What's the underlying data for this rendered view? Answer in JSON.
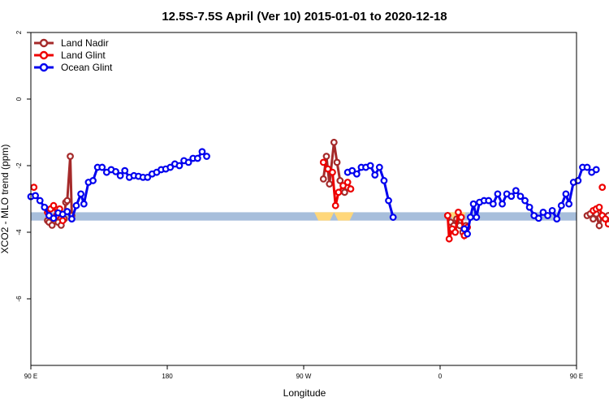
{
  "chart_data": {
    "type": "line",
    "title": "12.5S-7.5S April (Ver 10)   2015-01-01 to 2020-12-18",
    "xlabel": "Longitude",
    "ylabel": "XCO2 - MLO trend (ppm)",
    "xlim": [
      90,
      450
    ],
    "ylim": [
      -8,
      2
    ],
    "x_ticks": [
      {
        "value": 90,
        "label": "90 E"
      },
      {
        "value": 180,
        "label": "180"
      },
      {
        "value": 270,
        "label": "90 W"
      },
      {
        "value": 360,
        "label": "0"
      },
      {
        "value": 450,
        "label": "90 E"
      },
      {
        "value": 540,
        "label": "180"
      }
    ],
    "y_ticks": [
      {
        "value": 2,
        "label": "2"
      },
      {
        "value": 0,
        "label": "0"
      },
      {
        "value": -2,
        "label": "-2"
      },
      {
        "value": -4,
        "label": "-4"
      },
      {
        "value": -6,
        "label": "-6"
      }
    ],
    "grid": false,
    "legend_position": "top-left",
    "land_mask": {
      "y_range": [
        -3.65,
        -3.4
      ],
      "ocean_color": "#a7bedb",
      "land_color": "#ffd77a",
      "land_segments": [
        [
          277,
          290
        ],
        [
          290,
          303
        ],
        [
          366,
          377
        ]
      ]
    },
    "series": [
      {
        "name": "Land Nadir",
        "color": "#a52a2a",
        "segments": [
          [
            [
              101,
              -3.65
            ],
            [
              102,
              -3.7
            ],
            [
              104,
              -3.79
            ],
            [
              105,
              -3.6
            ],
            [
              106,
              -3.65
            ],
            [
              108,
              -3.7
            ],
            [
              110,
              -3.79
            ],
            [
              112,
              -3.6
            ],
            [
              113,
              -3.1
            ],
            [
              114,
              -3.05
            ],
            [
              116,
              -1.72
            ],
            [
              117,
              -3.5
            ]
          ],
          [
            [
              283,
              -2.4
            ],
            [
              285,
              -1.72
            ],
            [
              287,
              -2.55
            ],
            [
              290,
              -1.3
            ],
            [
              292,
              -1.9
            ],
            [
              294,
              -2.45
            ],
            [
              297,
              -2.8
            ],
            [
              299,
              -2.65
            ],
            [
              301,
              -2.7
            ]
          ],
          [
            [
              365,
              -3.5
            ],
            [
              367,
              -3.7
            ],
            [
              369,
              -3.8
            ],
            [
              371,
              -3.6
            ],
            [
              373,
              -3.8
            ],
            [
              375,
              -4.0
            ],
            [
              377,
              -3.8
            ]
          ],
          [
            [
              457,
              -3.5
            ],
            [
              459,
              -3.45
            ],
            [
              461,
              -3.6
            ],
            [
              463,
              -3.45
            ],
            [
              465,
              -3.8
            ],
            [
              467,
              -3.5
            ],
            [
              469,
              -3.55
            ],
            [
              471,
              -3.5
            ],
            [
              473,
              -3.75
            ],
            [
              475,
              -3.45
            ],
            [
              477,
              -3.1
            ],
            [
              478,
              -3.05
            ],
            [
              480,
              -1.72
            ],
            [
              481,
              -3.5
            ]
          ]
        ]
      },
      {
        "name": "Land Glint",
        "color": "#ee0000",
        "segments": [
          [
            [
              101,
              -3.4
            ],
            [
              103,
              -3.3
            ],
            [
              105,
              -3.2
            ],
            [
              107,
              -3.5
            ],
            [
              109,
              -3.3
            ],
            [
              111,
              -3.65
            ]
          ],
          [
            [
              283,
              -1.9
            ],
            [
              286,
              -2.1
            ],
            [
              289,
              -2.2
            ],
            [
              291,
              -3.2
            ],
            [
              293,
              -2.8
            ],
            [
              296,
              -2.6
            ],
            [
              299,
              -2.5
            ],
            [
              301,
              -2.7
            ]
          ],
          [
            [
              365,
              -3.5
            ],
            [
              366,
              -4.2
            ],
            [
              368,
              -3.9
            ],
            [
              370,
              -4.0
            ],
            [
              372,
              -3.4
            ],
            [
              374,
              -3.55
            ],
            [
              376,
              -4.1
            ],
            [
              378,
              -3.85
            ]
          ],
          [
            [
              461,
              -3.35
            ],
            [
              463,
              -3.3
            ],
            [
              465,
              -3.25
            ],
            [
              467,
              -3.5
            ],
            [
              469,
              -3.6
            ],
            [
              471,
              -3.75
            ]
          ]
        ],
        "points": [
          [
            92,
            -2.65
          ],
          [
            467,
            -2.65
          ]
        ]
      },
      {
        "name": "Ocean Glint",
        "color": "#0000ee",
        "segments": [
          [
            [
              90,
              -2.93
            ],
            [
              93,
              -2.9
            ],
            [
              96,
              -3.05
            ],
            [
              99,
              -3.25
            ],
            [
              102,
              -3.5
            ],
            [
              105,
              -3.58
            ],
            [
              108,
              -3.42
            ],
            [
              111,
              -3.46
            ],
            [
              114,
              -3.38
            ],
            [
              117,
              -3.6
            ],
            [
              120,
              -3.2
            ],
            [
              123,
              -2.85
            ],
            [
              125,
              -3.15
            ],
            [
              128,
              -2.5
            ],
            [
              131,
              -2.45
            ],
            [
              134,
              -2.05
            ],
            [
              137,
              -2.05
            ],
            [
              140,
              -2.2
            ],
            [
              143,
              -2.12
            ],
            [
              146,
              -2.18
            ],
            [
              149,
              -2.3
            ],
            [
              152,
              -2.15
            ],
            [
              155,
              -2.35
            ],
            [
              158,
              -2.3
            ],
            [
              161,
              -2.32
            ],
            [
              164,
              -2.35
            ],
            [
              167,
              -2.35
            ],
            [
              170,
              -2.25
            ],
            [
              173,
              -2.2
            ],
            [
              176,
              -2.12
            ],
            [
              179,
              -2.1
            ],
            [
              182,
              -2.05
            ],
            [
              185,
              -1.95
            ],
            [
              188,
              -2.0
            ],
            [
              191,
              -1.85
            ],
            [
              194,
              -1.9
            ],
            [
              197,
              -1.78
            ],
            [
              200,
              -1.78
            ],
            [
              203,
              -1.58
            ],
            [
              206,
              -1.72
            ]
          ],
          [
            [
              299,
              -2.2
            ],
            [
              302,
              -2.15
            ],
            [
              305,
              -2.25
            ],
            [
              308,
              -2.05
            ],
            [
              311,
              -2.05
            ],
            [
              314,
              -2.0
            ],
            [
              317,
              -2.28
            ],
            [
              320,
              -2.05
            ],
            [
              323,
              -2.45
            ],
            [
              326,
              -3.05
            ],
            [
              329,
              -3.55
            ]
          ],
          [
            [
              376,
              -3.9
            ],
            [
              378,
              -4.05
            ],
            [
              380,
              -3.55
            ],
            [
              382,
              -3.15
            ],
            [
              384,
              -3.55
            ],
            [
              386,
              -3.1
            ],
            [
              389,
              -3.05
            ],
            [
              392,
              -3.05
            ],
            [
              395,
              -3.15
            ],
            [
              398,
              -2.85
            ],
            [
              401,
              -3.15
            ],
            [
              404,
              -2.85
            ],
            [
              407,
              -2.92
            ],
            [
              410,
              -2.75
            ],
            [
              413,
              -2.92
            ],
            [
              416,
              -3.05
            ],
            [
              419,
              -3.25
            ],
            [
              422,
              -3.5
            ],
            [
              425,
              -3.58
            ],
            [
              428,
              -3.4
            ],
            [
              431,
              -3.5
            ],
            [
              434,
              -3.35
            ],
            [
              437,
              -3.6
            ],
            [
              440,
              -3.2
            ],
            [
              443,
              -2.85
            ],
            [
              445,
              -3.15
            ],
            [
              448,
              -2.5
            ],
            [
              451,
              -2.45
            ],
            [
              454,
              -2.05
            ],
            [
              457,
              -2.05
            ],
            [
              460,
              -2.2
            ],
            [
              463,
              -2.12
            ]
          ]
        ]
      }
    ]
  }
}
